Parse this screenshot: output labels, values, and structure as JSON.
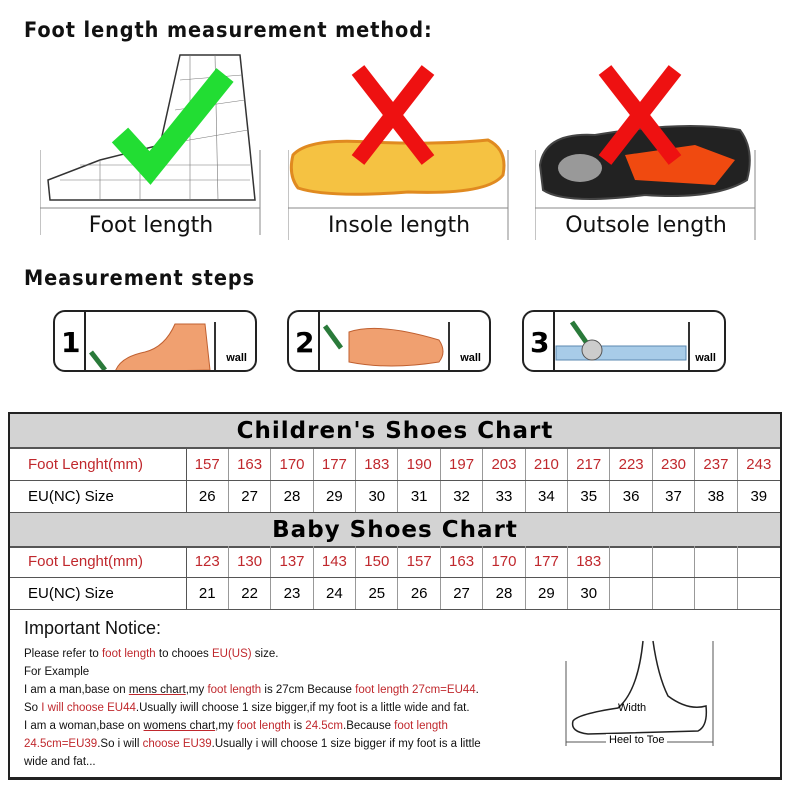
{
  "headings": {
    "method": "Foot length measurement method:",
    "steps": "Measurement steps"
  },
  "methods": [
    {
      "caption": "Foot length",
      "mark": "check",
      "color": "#22dd33"
    },
    {
      "caption": "Insole length",
      "mark": "cross",
      "color": "#ee1111"
    },
    {
      "caption": "Outsole length",
      "mark": "cross",
      "color": "#ee1111"
    }
  ],
  "steps": [
    {
      "number": "1",
      "wall": "wall"
    },
    {
      "number": "2",
      "wall": "wall"
    },
    {
      "number": "3",
      "wall": "wall"
    }
  ],
  "children_chart": {
    "title": "Children's Shoes Chart",
    "length_label": "Foot Lenght(mm)",
    "size_label": "EU(NC) Size",
    "lengths": [
      "157",
      "163",
      "170",
      "177",
      "183",
      "190",
      "197",
      "203",
      "210",
      "217",
      "223",
      "230",
      "237",
      "243"
    ],
    "sizes": [
      "26",
      "27",
      "28",
      "29",
      "30",
      "31",
      "32",
      "33",
      "34",
      "35",
      "36",
      "37",
      "38",
      "39"
    ]
  },
  "baby_chart": {
    "title": "Baby Shoes Chart",
    "length_label": "Foot Lenght(mm)",
    "size_label": "EU(NC) Size",
    "lengths": [
      "123",
      "130",
      "137",
      "143",
      "150",
      "157",
      "163",
      "170",
      "177",
      "183",
      "",
      "",
      "",
      ""
    ],
    "sizes": [
      "21",
      "22",
      "23",
      "24",
      "25",
      "26",
      "27",
      "28",
      "29",
      "30",
      "",
      "",
      "",
      ""
    ]
  },
  "notice": {
    "title": "Important Notice:",
    "lines": [
      [
        {
          "t": "Please refer to "
        },
        {
          "t": "foot length",
          "r": true
        },
        {
          "t": " to chooes "
        },
        {
          "t": "EU(US)",
          "r": true
        },
        {
          "t": " size."
        }
      ],
      [
        {
          "t": "For Example"
        }
      ],
      [
        {
          "t": "I am a man,base on "
        },
        {
          "t": "mens chart",
          "u": true
        },
        {
          "t": ",my "
        },
        {
          "t": "foot length",
          "r": true
        },
        {
          "t": " is 27cm Because "
        },
        {
          "t": "foot length 27cm=EU44",
          "r": true
        },
        {
          "t": "."
        }
      ],
      [
        {
          "t": "So "
        },
        {
          "t": "I will choose EU44",
          "r": true
        },
        {
          "t": ".Usually iwill choose 1 size bigger,if my foot is a little wide and fat."
        }
      ],
      [
        {
          "t": "I am a woman,base on "
        },
        {
          "t": "womens chart",
          "u": true
        },
        {
          "t": ",my "
        },
        {
          "t": "foot length",
          "r": true
        },
        {
          "t": " is "
        },
        {
          "t": "24.5cm",
          "r": true
        },
        {
          "t": ".Because "
        },
        {
          "t": "foot length",
          "r": true
        }
      ],
      [
        {
          "t": "24.5cm=EU39",
          "r": true
        },
        {
          "t": ".So i will "
        },
        {
          "t": "choose EU39",
          "r": true
        },
        {
          "t": ".Usually i will choose 1 size bigger if my foot is a little"
        }
      ],
      [
        {
          "t": "wide and fat..."
        }
      ]
    ],
    "figure": {
      "width_label": "Width",
      "heel_label": "Heel to Toe"
    }
  }
}
